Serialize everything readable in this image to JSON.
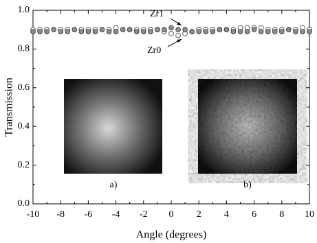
{
  "chart_data": {
    "type": "scatter",
    "xlabel": "Angle (degrees)",
    "ylabel": "Transmission",
    "x": [
      -10,
      -9.5,
      -9,
      -8.5,
      -8,
      -7.5,
      -7,
      -6.5,
      -6,
      -5.5,
      -5,
      -4.5,
      -4,
      -3.5,
      -3,
      -2.5,
      -2,
      -1.5,
      -1,
      -0.5,
      0,
      0.5,
      1,
      1.5,
      2,
      2.5,
      3,
      3.5,
      4,
      4.5,
      5,
      5.5,
      6,
      6.5,
      7,
      7.5,
      8,
      8.5,
      9,
      9.5,
      10
    ],
    "series": [
      {
        "name": "Zr0",
        "color": "#ffffff",
        "values": [
          0.9,
          0.9,
          0.9,
          0.9,
          0.9,
          0.9,
          0.9,
          0.9,
          0.9,
          0.9,
          0.9,
          0.9,
          0.91,
          0.9,
          0.9,
          0.9,
          0.9,
          0.9,
          0.9,
          0.89,
          0.88,
          0.87,
          0.88,
          0.89,
          0.9,
          0.9,
          0.9,
          0.9,
          0.9,
          0.9,
          0.91,
          0.91,
          0.91,
          0.91,
          0.9,
          0.9,
          0.9,
          0.9,
          0.9,
          0.91,
          0.9
        ]
      },
      {
        "name": "Zr1",
        "color": "#8c8c8c",
        "values": [
          0.89,
          0.89,
          0.89,
          0.9,
          0.89,
          0.89,
          0.9,
          0.89,
          0.89,
          0.89,
          0.9,
          0.89,
          0.89,
          0.9,
          0.9,
          0.89,
          0.89,
          0.89,
          0.9,
          0.9,
          0.91,
          0.9,
          0.9,
          0.89,
          0.89,
          0.89,
          0.89,
          0.9,
          0.9,
          0.89,
          0.89,
          0.89,
          0.9,
          0.89,
          0.89,
          0.89,
          0.89,
          0.9,
          0.89,
          0.89,
          0.89
        ]
      }
    ],
    "xlim": [
      -10,
      10
    ],
    "xticks": [
      -10,
      -8,
      -6,
      -4,
      -2,
      0,
      2,
      4,
      6,
      8,
      10
    ],
    "ylim": [
      0,
      1
    ],
    "yticks": [
      {
        "value": 0,
        "label": "0.0"
      },
      0.2,
      0.4,
      0.6,
      0.8,
      {
        "value": 1,
        "label": "1.0"
      }
    ],
    "annotations": [
      "Zr1",
      "Zr0"
    ],
    "inset_labels": [
      "a)",
      "b)"
    ]
  }
}
